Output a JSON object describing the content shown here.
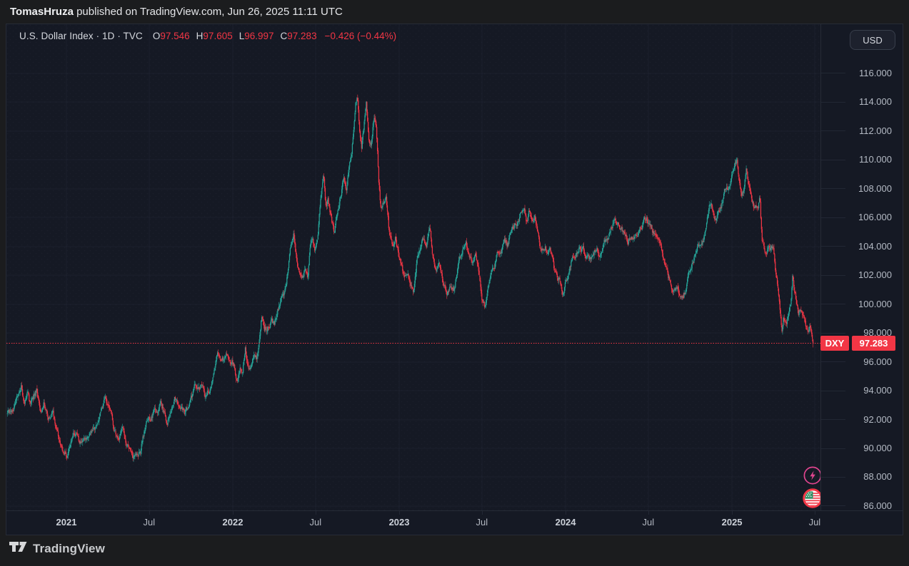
{
  "attribution": {
    "author": "TomasHruza",
    "suffix": " published on TradingView.com, Jun 26, 2025 11:11 UTC"
  },
  "legend": {
    "title": "U.S. Dollar Index · 1D · TVC",
    "ohlc": [
      {
        "label": "O",
        "value": "97.546"
      },
      {
        "label": "H",
        "value": "97.605"
      },
      {
        "label": "L",
        "value": "96.997"
      },
      {
        "label": "C",
        "value": "97.283"
      }
    ],
    "change": "−0.426 (−0.44%)"
  },
  "price_axis": {
    "currency_button": "USD",
    "labels": [
      "116.000",
      "114.000",
      "112.000",
      "110.000",
      "108.000",
      "106.000",
      "104.000",
      "102.000",
      "100.000",
      "98.000",
      "96.000",
      "94.000",
      "92.000",
      "90.000",
      "88.000",
      "86.000"
    ]
  },
  "time_axis": {
    "ticks": [
      {
        "label": "2021",
        "t": 2021.0,
        "major": true
      },
      {
        "label": "Jul",
        "t": 2021.497,
        "major": false
      },
      {
        "label": "2022",
        "t": 2022.0,
        "major": true
      },
      {
        "label": "Jul",
        "t": 2022.497,
        "major": false
      },
      {
        "label": "2023",
        "t": 2023.0,
        "major": true
      },
      {
        "label": "Jul",
        "t": 2023.497,
        "major": false
      },
      {
        "label": "2024",
        "t": 2024.0,
        "major": true
      },
      {
        "label": "Jul",
        "t": 2024.497,
        "major": false
      },
      {
        "label": "2025",
        "t": 2025.0,
        "major": true
      },
      {
        "label": "Jul",
        "t": 2025.497,
        "major": false
      }
    ]
  },
  "price_line": {
    "symbol": "DXY",
    "price_label": "97.283",
    "price": 97.283
  },
  "footer": {
    "brand": "TradingView"
  },
  "colors": {
    "up": "#26a69a",
    "down": "#f23645",
    "red": "#f23645",
    "pink": "#e0458f",
    "chart_bg": "#151924",
    "outer_bg": "#1b1c1e",
    "grid": "#222734",
    "border": "#262b36",
    "text": "#d5d8de",
    "text_dim": "#b4bac4"
  },
  "chart_data": {
    "type": "candlestick",
    "symbol": "U.S. Dollar Index",
    "exchange": "TVC",
    "interval": "1D",
    "last_bar": {
      "open": 97.546,
      "high": 97.605,
      "low": 96.997,
      "close": 97.283,
      "change": -0.426,
      "change_pct": -0.44
    },
    "x_range": [
      2020.6395,
      2025.5318
    ],
    "y_range": [
      85.7,
      119.41
    ],
    "bars_per_year": 252,
    "price_keypoints": [
      [
        2020.645,
        92.3
      ],
      [
        2020.665,
        92.6
      ],
      [
        2020.69,
        93.3
      ],
      [
        2020.715,
        94.0
      ],
      [
        2020.73,
        94.6
      ],
      [
        2020.745,
        93.3
      ],
      [
        2020.765,
        94.1
      ],
      [
        2020.78,
        93.2
      ],
      [
        2020.8,
        93.5
      ],
      [
        2020.82,
        94.0
      ],
      [
        2020.845,
        92.8
      ],
      [
        2020.865,
        93.3
      ],
      [
        2020.89,
        92.0
      ],
      [
        2020.915,
        92.4
      ],
      [
        2020.94,
        91.3
      ],
      [
        2020.96,
        90.6
      ],
      [
        2020.98,
        89.9
      ],
      [
        2021.005,
        89.4
      ],
      [
        2021.03,
        90.5
      ],
      [
        2021.055,
        90.9
      ],
      [
        2021.08,
        90.4
      ],
      [
        2021.105,
        90.8
      ],
      [
        2021.13,
        90.4
      ],
      [
        2021.155,
        91.4
      ],
      [
        2021.18,
        91.5
      ],
      [
        2021.205,
        92.3
      ],
      [
        2021.235,
        93.35
      ],
      [
        2021.26,
        92.9
      ],
      [
        2021.285,
        91.5
      ],
      [
        2021.31,
        90.9
      ],
      [
        2021.335,
        91.3
      ],
      [
        2021.36,
        90.2
      ],
      [
        2021.385,
        89.85
      ],
      [
        2021.4,
        89.65
      ],
      [
        2021.425,
        90.05
      ],
      [
        2021.445,
        89.9
      ],
      [
        2021.465,
        91.1
      ],
      [
        2021.485,
        92.3
      ],
      [
        2021.505,
        92.0
      ],
      [
        2021.53,
        92.65
      ],
      [
        2021.55,
        92.2
      ],
      [
        2021.565,
        93.1
      ],
      [
        2021.585,
        92.5
      ],
      [
        2021.605,
        91.95
      ],
      [
        2021.63,
        92.9
      ],
      [
        2021.65,
        93.5
      ],
      [
        2021.67,
        92.9
      ],
      [
        2021.69,
        93.1
      ],
      [
        2021.71,
        92.5
      ],
      [
        2021.735,
        92.9
      ],
      [
        2021.755,
        93.5
      ],
      [
        2021.775,
        94.4
      ],
      [
        2021.795,
        93.9
      ],
      [
        2021.815,
        94.25
      ],
      [
        2021.835,
        93.75
      ],
      [
        2021.855,
        94.0
      ],
      [
        2021.875,
        94.5
      ],
      [
        2021.89,
        95.2
      ],
      [
        2021.9,
        96.4
      ],
      [
        2021.91,
        96.8
      ],
      [
        2021.925,
        95.9
      ],
      [
        2021.945,
        96.2
      ],
      [
        2021.96,
        96.55
      ],
      [
        2021.975,
        95.95
      ],
      [
        2021.99,
        95.75
      ],
      [
        2022.01,
        95.9
      ],
      [
        2022.025,
        94.75
      ],
      [
        2022.045,
        95.4
      ],
      [
        2022.06,
        95.7
      ],
      [
        2022.075,
        97.2
      ],
      [
        2022.09,
        96.0
      ],
      [
        2022.105,
        95.5
      ],
      [
        2022.125,
        96.3
      ],
      [
        2022.145,
        96.1
      ],
      [
        2022.16,
        97.4
      ],
      [
        2022.175,
        99.2
      ],
      [
        2022.19,
        98.2
      ],
      [
        2022.21,
        98.5
      ],
      [
        2022.23,
        98.9
      ],
      [
        2022.25,
        98.4
      ],
      [
        2022.27,
        99.7
      ],
      [
        2022.295,
        100.4
      ],
      [
        2022.32,
        101.0
      ],
      [
        2022.345,
        103.5
      ],
      [
        2022.365,
        104.9
      ],
      [
        2022.385,
        103.2
      ],
      [
        2022.405,
        101.9
      ],
      [
        2022.42,
        101.75
      ],
      [
        2022.435,
        102.4
      ],
      [
        2022.45,
        101.9
      ],
      [
        2022.465,
        104.4
      ],
      [
        2022.478,
        104.95
      ],
      [
        2022.492,
        103.95
      ],
      [
        2022.51,
        104.6
      ],
      [
        2022.528,
        107.1
      ],
      [
        2022.545,
        109.1
      ],
      [
        2022.558,
        106.9
      ],
      [
        2022.572,
        107.3
      ],
      [
        2022.59,
        106.0
      ],
      [
        2022.61,
        104.9
      ],
      [
        2022.63,
        106.6
      ],
      [
        2022.65,
        107.8
      ],
      [
        2022.668,
        108.9
      ],
      [
        2022.683,
        107.7
      ],
      [
        2022.7,
        109.7
      ],
      [
        2022.714,
        110.3
      ],
      [
        2022.726,
        112.0
      ],
      [
        2022.738,
        114.0
      ],
      [
        2022.748,
        114.6
      ],
      [
        2022.76,
        112.3
      ],
      [
        2022.774,
        111.0
      ],
      [
        2022.788,
        112.4
      ],
      [
        2022.802,
        113.7
      ],
      [
        2022.818,
        111.1
      ],
      [
        2022.832,
        110.7
      ],
      [
        2022.846,
        112.8
      ],
      [
        2022.86,
        112.6
      ],
      [
        2022.876,
        108.6
      ],
      [
        2022.89,
        106.6
      ],
      [
        2022.905,
        107.1
      ],
      [
        2022.92,
        107.8
      ],
      [
        2022.938,
        105.3
      ],
      [
        2022.958,
        104.4
      ],
      [
        2022.978,
        104.8
      ],
      [
        2023.0,
        103.3
      ],
      [
        2023.02,
        102.4
      ],
      [
        2023.045,
        102.0
      ],
      [
        2023.068,
        101.4
      ],
      [
        2023.085,
        100.9
      ],
      [
        2023.105,
        103.1
      ],
      [
        2023.125,
        103.8
      ],
      [
        2023.145,
        104.5
      ],
      [
        2023.165,
        104.2
      ],
      [
        2023.182,
        105.7
      ],
      [
        2023.2,
        103.8
      ],
      [
        2023.22,
        102.5
      ],
      [
        2023.24,
        103.1
      ],
      [
        2023.262,
        101.8
      ],
      [
        2023.285,
        100.9
      ],
      [
        2023.308,
        101.6
      ],
      [
        2023.33,
        101.2
      ],
      [
        2023.355,
        102.6
      ],
      [
        2023.378,
        103.2
      ],
      [
        2023.4,
        104.4
      ],
      [
        2023.42,
        103.2
      ],
      [
        2023.44,
        102.8
      ],
      [
        2023.458,
        103.5
      ],
      [
        2023.478,
        101.9
      ],
      [
        2023.498,
        100.2
      ],
      [
        2023.515,
        99.7
      ],
      [
        2023.532,
        100.9
      ],
      [
        2023.552,
        101.9
      ],
      [
        2023.572,
        102.6
      ],
      [
        2023.59,
        103.5
      ],
      [
        2023.61,
        103.2
      ],
      [
        2023.63,
        104.2
      ],
      [
        2023.65,
        104.0
      ],
      [
        2023.67,
        104.9
      ],
      [
        2023.69,
        105.4
      ],
      [
        2023.71,
        105.7
      ],
      [
        2023.73,
        106.3
      ],
      [
        2023.75,
        107.0
      ],
      [
        2023.765,
        106.0
      ],
      [
        2023.782,
        106.6
      ],
      [
        2023.8,
        106.3
      ],
      [
        2023.815,
        106.6
      ],
      [
        2023.832,
        105.2
      ],
      [
        2023.848,
        103.9
      ],
      [
        2023.865,
        103.75
      ],
      [
        2023.878,
        103.95
      ],
      [
        2023.892,
        103.4
      ],
      [
        2023.908,
        104.0
      ],
      [
        2023.928,
        102.5
      ],
      [
        2023.948,
        101.9
      ],
      [
        2023.968,
        101.5
      ],
      [
        2023.985,
        100.8
      ],
      [
        2024.005,
        101.6
      ],
      [
        2024.025,
        102.5
      ],
      [
        2024.045,
        103.4
      ],
      [
        2024.065,
        103.5
      ],
      [
        2024.085,
        104.2
      ],
      [
        2024.105,
        103.9
      ],
      [
        2024.125,
        103.1
      ],
      [
        2024.145,
        102.9
      ],
      [
        2024.165,
        103.5
      ],
      [
        2024.185,
        103.9
      ],
      [
        2024.205,
        103.45
      ],
      [
        2024.228,
        104.4
      ],
      [
        2024.255,
        104.6
      ],
      [
        2024.28,
        105.3
      ],
      [
        2024.295,
        106.2
      ],
      [
        2024.315,
        105.8
      ],
      [
        2024.335,
        105.6
      ],
      [
        2024.355,
        105.0
      ],
      [
        2024.375,
        104.4
      ],
      [
        2024.395,
        104.9
      ],
      [
        2024.415,
        104.6
      ],
      [
        2024.435,
        104.5
      ],
      [
        2024.455,
        105.2
      ],
      [
        2024.472,
        105.6
      ],
      [
        2024.488,
        105.9
      ],
      [
        2024.505,
        105.7
      ],
      [
        2024.525,
        105.0
      ],
      [
        2024.545,
        104.4
      ],
      [
        2024.565,
        104.1
      ],
      [
        2024.585,
        103.1
      ],
      [
        2024.605,
        102.8
      ],
      [
        2024.625,
        101.7
      ],
      [
        2024.645,
        100.8
      ],
      [
        2024.66,
        101.1
      ],
      [
        2024.675,
        101.4
      ],
      [
        2024.69,
        100.6
      ],
      [
        2024.705,
        100.4
      ],
      [
        2024.72,
        100.9
      ],
      [
        2024.738,
        102.0
      ],
      [
        2024.755,
        102.6
      ],
      [
        2024.775,
        103.5
      ],
      [
        2024.795,
        104.3
      ],
      [
        2024.812,
        104.0
      ],
      [
        2024.83,
        104.5
      ],
      [
        2024.85,
        105.5
      ],
      [
        2024.865,
        106.7
      ],
      [
        2024.878,
        106.9
      ],
      [
        2024.893,
        106.0
      ],
      [
        2024.908,
        105.9
      ],
      [
        2024.923,
        106.5
      ],
      [
        2024.938,
        107.0
      ],
      [
        2024.953,
        107.9
      ],
      [
        2024.968,
        108.2
      ],
      [
        2024.983,
        108.3
      ],
      [
        2025.0,
        108.9
      ],
      [
        2025.014,
        109.1
      ],
      [
        2025.028,
        109.9
      ],
      [
        2025.042,
        108.7
      ],
      [
        2025.058,
        107.5
      ],
      [
        2025.072,
        107.9
      ],
      [
        2025.086,
        109.5
      ],
      [
        2025.1,
        108.3
      ],
      [
        2025.115,
        107.9
      ],
      [
        2025.13,
        107.0
      ],
      [
        2025.145,
        106.7
      ],
      [
        2025.158,
        106.3
      ],
      [
        2025.168,
        107.3
      ],
      [
        2025.18,
        104.4
      ],
      [
        2025.194,
        103.7
      ],
      [
        2025.208,
        103.9
      ],
      [
        2025.222,
        104.15
      ],
      [
        2025.236,
        103.85
      ],
      [
        2025.25,
        104.1
      ],
      [
        2025.263,
        102.3
      ],
      [
        2025.276,
        101.2
      ],
      [
        2025.288,
        99.7
      ],
      [
        2025.3,
        98.3
      ],
      [
        2025.31,
        99.3
      ],
      [
        2025.32,
        99.1
      ],
      [
        2025.33,
        98.9
      ],
      [
        2025.342,
        99.6
      ],
      [
        2025.354,
        100.2
      ],
      [
        2025.364,
        101.9
      ],
      [
        2025.376,
        100.8
      ],
      [
        2025.388,
        100.2
      ],
      [
        2025.4,
        99.4
      ],
      [
        2025.413,
        99.8
      ],
      [
        2025.426,
        99.3
      ],
      [
        2025.438,
        98.9
      ],
      [
        2025.45,
        98.1
      ],
      [
        2025.459,
        97.9
      ],
      [
        2025.469,
        98.5
      ],
      [
        2025.479,
        97.9
      ],
      [
        2025.487,
        97.35
      ]
    ]
  }
}
